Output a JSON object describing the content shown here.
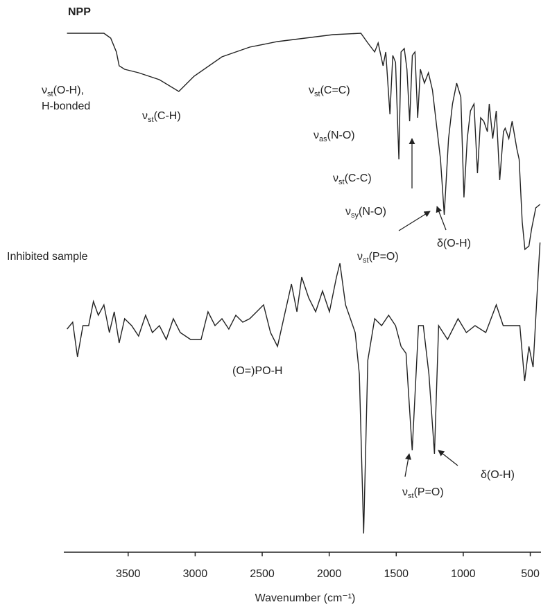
{
  "chart_data": {
    "type": "line",
    "xlabel": "Wavenumber (cm⁻¹)",
    "xlim": [
      3980,
      420
    ],
    "xticks": [
      3500,
      3000,
      2500,
      2000,
      1500,
      1000,
      500
    ],
    "ylim": [
      0,
      740
    ],
    "series": [
      {
        "name": "NPP",
        "color": "#222",
        "x": [
          3956,
          3681,
          3630,
          3588,
          3567,
          3526,
          3422,
          3267,
          3122,
          3008,
          2800,
          2593,
          2386,
          2179,
          1972,
          1764,
          1712,
          1661,
          1635,
          1598,
          1578,
          1547,
          1526,
          1505,
          1480,
          1464,
          1440,
          1420,
          1400,
          1380,
          1360,
          1340,
          1320,
          1290,
          1260,
          1230,
          1200,
          1170,
          1142,
          1110,
          1080,
          1049,
          1018,
          995,
          970,
          946,
          920,
          894,
          870,
          847,
          820,
          806,
          780,
          754,
          728,
          700,
          687,
          660,
          635,
          600,
          583,
          560,
          540,
          510,
          490,
          459,
          427
        ],
        "values": [
          732,
          732,
          725,
          705,
          685,
          680,
          675,
          665,
          648,
          670,
          698,
          712,
          720,
          725,
          730,
          732,
          718,
          705,
          718,
          685,
          705,
          615,
          700,
          690,
          550,
          705,
          710,
          680,
          605,
          700,
          705,
          610,
          680,
          660,
          675,
          650,
          600,
          550,
          470,
          580,
          630,
          660,
          640,
          495,
          580,
          620,
          630,
          530,
          610,
          605,
          590,
          630,
          580,
          620,
          520,
          590,
          595,
          580,
          605,
          565,
          550,
          460,
          420,
          425,
          450,
          480,
          485
        ]
      },
      {
        "name": "Inhibited sample",
        "color": "#222",
        "x": [
          3956,
          3914,
          3878,
          3837,
          3795,
          3759,
          3723,
          3681,
          3640,
          3604,
          3567,
          3526,
          3474,
          3422,
          3370,
          3319,
          3267,
          3215,
          3163,
          3111,
          3034,
          2956,
          2904,
          2852,
          2800,
          2749,
          2697,
          2645,
          2593,
          2541,
          2490,
          2438,
          2386,
          2334,
          2282,
          2241,
          2205,
          2153,
          2101,
          2050,
          1998,
          1946,
          1920,
          1878,
          1842,
          1806,
          1775,
          1743,
          1712,
          1661,
          1609,
          1557,
          1505,
          1464,
          1427,
          1381,
          1334,
          1298,
          1256,
          1215,
          1184,
          1117,
          1039,
          977,
          912,
          832,
          754,
          702,
          624,
          578,
          542,
          510,
          479,
          448,
          427
        ],
        "values": [
          305,
          315,
          265,
          310,
          310,
          345,
          325,
          340,
          300,
          330,
          285,
          320,
          310,
          295,
          325,
          300,
          310,
          290,
          320,
          300,
          290,
          290,
          330,
          310,
          320,
          305,
          325,
          315,
          320,
          330,
          340,
          300,
          280,
          325,
          370,
          330,
          380,
          350,
          330,
          360,
          330,
          380,
          400,
          340,
          320,
          300,
          240,
          10,
          260,
          320,
          310,
          325,
          310,
          280,
          270,
          130,
          310,
          310,
          240,
          125,
          310,
          290,
          320,
          300,
          310,
          300,
          340,
          310,
          310,
          310,
          230,
          280,
          250,
          360,
          430
        ]
      }
    ],
    "annotations": [
      {
        "text": "ν",
        "sub": "st",
        "rest": "(O-H),"
      },
      {
        "text": "H-bonded"
      },
      {
        "text": "ν",
        "sub": "st",
        "rest": "(C-H)"
      },
      {
        "text": "ν",
        "sub": "st",
        "rest": "(C=C)"
      },
      {
        "text": "ν",
        "sub": "as",
        "rest": "(N-O)"
      },
      {
        "text": "ν",
        "sub": "st",
        "rest": "(C-C)"
      },
      {
        "text": "ν",
        "sub": "sy",
        "rest": "(N-O)"
      },
      {
        "text": "ν",
        "sub": "st",
        "rest": "(P=O)"
      },
      {
        "text": "δ(O-H)"
      },
      {
        "text": "(O=)PO-H"
      },
      {
        "text": "ν",
        "sub": "st",
        "rest": "(P=O)"
      },
      {
        "text": "δ(O-H)"
      }
    ]
  }
}
